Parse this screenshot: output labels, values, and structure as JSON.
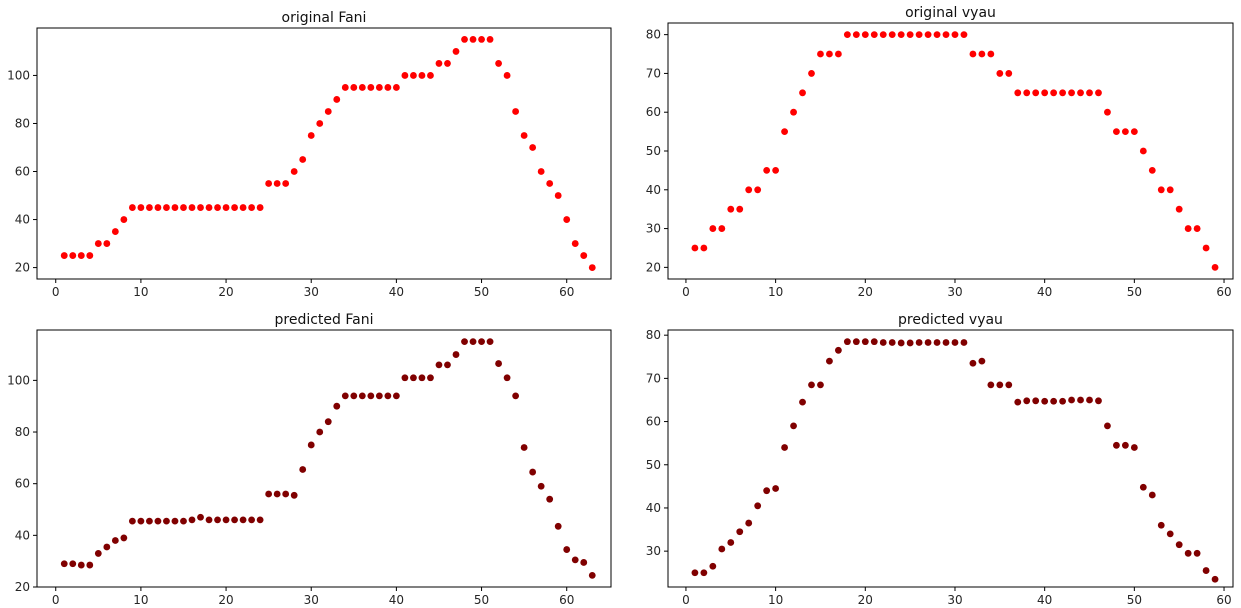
{
  "chart_data": [
    {
      "type": "scatter",
      "title": "original Fani",
      "xlabel": "",
      "ylabel": "",
      "xlim": [
        -2.2,
        65.2
      ],
      "ylim": [
        15.25,
        119.75
      ],
      "xticks": [
        0,
        10,
        20,
        30,
        40,
        50,
        60
      ],
      "yticks": [
        20,
        40,
        60,
        80,
        100
      ],
      "marker_color": "#ff0000",
      "grid": false,
      "series": [
        {
          "x": [
            1,
            2,
            3,
            4,
            5,
            6,
            7,
            8,
            9,
            10,
            11,
            12,
            13,
            14,
            15,
            16,
            17,
            18,
            19,
            20,
            21,
            22,
            23,
            24,
            25,
            26,
            27,
            28,
            29,
            30,
            31,
            32,
            33,
            34,
            35,
            36,
            37,
            38,
            39,
            40,
            41,
            42,
            43,
            44,
            45,
            46,
            47,
            48,
            49,
            50,
            51,
            52,
            53,
            54,
            55,
            56,
            57,
            58,
            59,
            60,
            61,
            62,
            63
          ],
          "y": [
            25,
            25,
            25,
            25,
            30,
            30,
            35,
            40,
            45,
            45,
            45,
            45,
            45,
            45,
            45,
            45,
            45,
            45,
            45,
            45,
            45,
            45,
            45,
            45,
            55,
            55,
            55,
            60,
            65,
            75,
            80,
            85,
            90,
            95,
            95,
            95,
            95,
            95,
            95,
            95,
            100,
            100,
            100,
            100,
            105,
            105,
            110,
            115,
            115,
            115,
            115,
            105,
            100,
            85,
            75,
            70,
            60,
            55,
            50,
            40,
            30,
            25,
            20
          ]
        }
      ]
    },
    {
      "type": "scatter",
      "title": "original vyau",
      "xlabel": "",
      "ylabel": "",
      "xlim": [
        -2.0,
        61.0
      ],
      "ylim": [
        17.0,
        83.0
      ],
      "xticks": [
        0,
        10,
        20,
        30,
        40,
        50,
        60
      ],
      "yticks": [
        20,
        30,
        40,
        50,
        60,
        70,
        80
      ],
      "marker_color": "#ff0000",
      "grid": false,
      "series": [
        {
          "x": [
            1,
            2,
            3,
            4,
            5,
            6,
            7,
            8,
            9,
            10,
            11,
            12,
            13,
            14,
            15,
            16,
            17,
            18,
            19,
            20,
            21,
            22,
            23,
            24,
            25,
            26,
            27,
            28,
            29,
            30,
            31,
            32,
            33,
            34,
            35,
            36,
            37,
            38,
            39,
            40,
            41,
            42,
            43,
            44,
            45,
            46,
            47,
            48,
            49,
            50,
            51,
            52,
            53,
            54,
            55,
            56,
            57,
            58,
            59
          ],
          "y": [
            25,
            25,
            30,
            30,
            35,
            35,
            40,
            40,
            45,
            45,
            55,
            60,
            65,
            70,
            75,
            75,
            75,
            80,
            80,
            80,
            80,
            80,
            80,
            80,
            80,
            80,
            80,
            80,
            80,
            80,
            80,
            75,
            75,
            75,
            70,
            70,
            65,
            65,
            65,
            65,
            65,
            65,
            65,
            65,
            65,
            65,
            60,
            55,
            55,
            55,
            50,
            45,
            40,
            40,
            35,
            30,
            30,
            25,
            20
          ]
        }
      ]
    },
    {
      "type": "scatter",
      "title": "predicted Fani",
      "xlabel": "",
      "ylabel": "",
      "xlim": [
        -2.2,
        65.2
      ],
      "ylim": [
        20.0,
        119.5
      ],
      "xticks": [
        0,
        10,
        20,
        30,
        40,
        50,
        60
      ],
      "yticks": [
        20,
        40,
        60,
        80,
        100
      ],
      "marker_color": "#800000",
      "grid": false,
      "series": [
        {
          "x": [
            1,
            2,
            3,
            4,
            5,
            6,
            7,
            8,
            9,
            10,
            11,
            12,
            13,
            14,
            15,
            16,
            17,
            18,
            19,
            20,
            21,
            22,
            23,
            24,
            25,
            26,
            27,
            28,
            29,
            30,
            31,
            32,
            33,
            34,
            35,
            36,
            37,
            38,
            39,
            40,
            41,
            42,
            43,
            44,
            45,
            46,
            47,
            48,
            49,
            50,
            51,
            52,
            53,
            54,
            55,
            56,
            57,
            58,
            59,
            60,
            61,
            62,
            63
          ],
          "y": [
            29,
            29,
            28.5,
            28.5,
            33,
            35.5,
            38,
            39,
            45.5,
            45.5,
            45.5,
            45.5,
            45.5,
            45.5,
            45.5,
            46,
            47,
            46,
            46,
            46,
            46,
            46,
            46,
            46,
            56,
            56,
            56,
            55.5,
            65.5,
            75,
            80,
            84,
            90,
            94,
            94,
            94,
            94,
            94,
            94,
            94,
            101,
            101,
            101,
            101,
            106,
            106,
            110,
            115,
            115,
            115,
            115,
            106.5,
            101,
            94,
            74,
            64.5,
            59,
            54,
            43.5,
            34.5,
            30.5,
            29.5,
            24.5
          ]
        }
      ]
    },
    {
      "type": "scatter",
      "title": "predicted vyau",
      "xlabel": "",
      "ylabel": "",
      "xlim": [
        -2.0,
        61.0
      ],
      "ylim": [
        21.7,
        81.2
      ],
      "xticks": [
        0,
        10,
        20,
        30,
        40,
        50,
        60
      ],
      "yticks": [
        30,
        40,
        50,
        60,
        70,
        80
      ],
      "marker_color": "#800000",
      "grid": false,
      "series": [
        {
          "x": [
            1,
            2,
            3,
            4,
            5,
            6,
            7,
            8,
            9,
            10,
            11,
            12,
            13,
            14,
            15,
            16,
            17,
            18,
            19,
            20,
            21,
            22,
            23,
            24,
            25,
            26,
            27,
            28,
            29,
            30,
            31,
            32,
            33,
            34,
            35,
            36,
            37,
            38,
            39,
            40,
            41,
            42,
            43,
            44,
            45,
            46,
            47,
            48,
            49,
            50,
            51,
            52,
            53,
            54,
            55,
            56,
            57,
            58,
            59
          ],
          "y": [
            25,
            25,
            26.5,
            30.5,
            32,
            34.5,
            36.5,
            40.5,
            44,
            44.5,
            54,
            59,
            64.5,
            68.5,
            68.5,
            74,
            76.5,
            78.5,
            78.5,
            78.5,
            78.5,
            78.3,
            78.3,
            78.2,
            78.2,
            78.3,
            78.3,
            78.3,
            78.3,
            78.3,
            78.3,
            73.5,
            74,
            68.5,
            68.5,
            68.5,
            64.5,
            64.8,
            64.8,
            64.7,
            64.7,
            64.7,
            65,
            65,
            65,
            64.8,
            59,
            54.5,
            54.5,
            54,
            44.8,
            43,
            36,
            34,
            31.5,
            29.5,
            29.5,
            25.5,
            23.5
          ]
        }
      ]
    }
  ]
}
